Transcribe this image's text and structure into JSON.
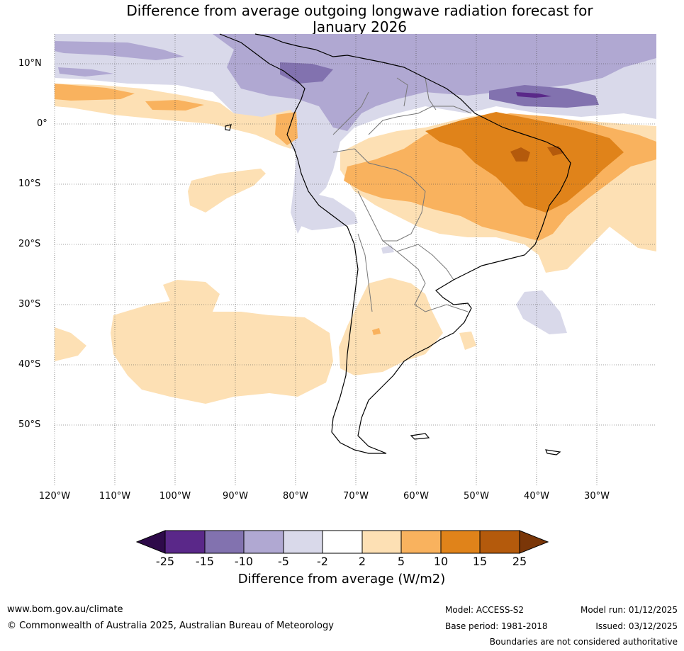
{
  "title_line1": "Difference from average outgoing longwave radiation forecast for",
  "title_line2": "January 2026",
  "lat_labels": [
    "10°N",
    "0°",
    "10°S",
    "20°S",
    "30°S",
    "40°S",
    "50°S"
  ],
  "lon_labels": [
    "120°W",
    "110°W",
    "100°W",
    "90°W",
    "80°W",
    "70°W",
    "60°W",
    "50°W",
    "40°W",
    "30°W"
  ],
  "colorbar": {
    "ticks": [
      "-25",
      "-15",
      "-10",
      "-5",
      "-2",
      "2",
      "5",
      "10",
      "15",
      "25"
    ],
    "colors": [
      "#2e0a4a",
      "#5a2889",
      "#8272af",
      "#b0a8d2",
      "#d9d9ea",
      "#ffffff",
      "#fde0b4",
      "#f9b25e",
      "#e0831a",
      "#b45a0c",
      "#7a3608"
    ],
    "label": "Difference from average (W/m2)"
  },
  "footer": {
    "url": "www.bom.gov.au/climate",
    "copyright": "© Commonwealth of Australia 2025, Australian Bureau of Meteorology",
    "model": "Model: ACCESS-S2",
    "base_period": "Base period: 1981-2018",
    "model_run": "Model run: 01/12/2025",
    "issued": "Issued: 03/12/2025",
    "disclaimer": "Boundaries are not considered authoritative"
  }
}
